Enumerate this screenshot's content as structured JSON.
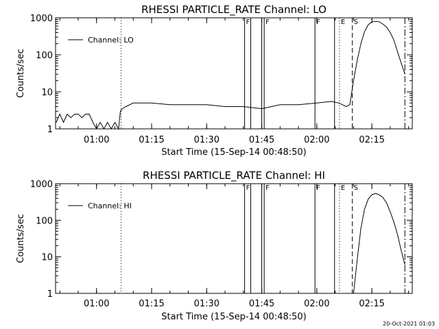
{
  "footer_timestamp": "20-Oct-2021 01:03",
  "time_axis": {
    "start": "00:48:50",
    "end": "02:26:00",
    "tick_labels": [
      "01:00",
      "01:15",
      "01:30",
      "01:45",
      "02:00",
      "02:15"
    ],
    "tick_times": [
      "01:00",
      "01:15",
      "01:30",
      "01:45",
      "02:00",
      "02:15"
    ]
  },
  "markers": [
    {
      "time": "01:06:40",
      "style": "dotted",
      "label": ""
    },
    {
      "time": "01:40:20",
      "style": "solid",
      "label": "F"
    },
    {
      "time": "01:42:00",
      "style": "solid",
      "label": ""
    },
    {
      "time": "01:45:00",
      "style": "solid",
      "label": ""
    },
    {
      "time": "01:45:40",
      "style": "solid",
      "label": "F"
    },
    {
      "time": "01:59:30",
      "style": "solid",
      "label": "F"
    },
    {
      "time": "02:04:50",
      "style": "solid",
      "label": ""
    },
    {
      "time": "02:06:10",
      "style": "dotted",
      "label": "E"
    },
    {
      "time": "02:09:40",
      "style": "dashed",
      "label": "S"
    },
    {
      "time": "02:24:00",
      "style": "dashdot",
      "label": ""
    }
  ],
  "chart_data": [
    {
      "type": "line",
      "title": "RHESSI PARTICLE_RATE Channel: LO",
      "xlabel": "Start Time (15-Sep-14 00:48:50)",
      "ylabel": "Counts/sec",
      "y_scale": "log",
      "ylim": [
        1,
        1000
      ],
      "y_tick_labels": [
        "1",
        "10",
        "100",
        "1000"
      ],
      "legend": "top-left",
      "series": [
        {
          "name": "Channel: LO",
          "x": [
            "00:49:00",
            "00:50:00",
            "00:51:00",
            "00:52:00",
            "00:53:00",
            "00:54:00",
            "00:55:00",
            "00:56:00",
            "00:57:00",
            "00:58:00",
            "00:59:00",
            "01:00:00",
            "01:01:00",
            "01:02:00",
            "01:03:00",
            "01:04:00",
            "01:05:00",
            "01:06:00",
            "01:06:30",
            "01:07:00",
            "01:08:00",
            "01:10:00",
            "01:12:00",
            "01:15:00",
            "01:20:00",
            "01:25:00",
            "01:30:00",
            "01:35:00",
            "01:40:00",
            "01:45:00",
            "01:50:00",
            "01:55:00",
            "02:00:00",
            "02:04:00",
            "02:06:00",
            "02:08:00",
            "02:09:00",
            "02:10:00",
            "02:11:00",
            "02:12:00",
            "02:13:00",
            "02:14:00",
            "02:15:00",
            "02:16:00",
            "02:17:00",
            "02:18:00",
            "02:19:00",
            "02:20:00",
            "02:21:00",
            "02:22:00",
            "02:23:00",
            "02:24:00"
          ],
          "y": [
            1.5,
            2.5,
            1.5,
            2.5,
            2.0,
            2.5,
            2.5,
            2.0,
            2.5,
            2.5,
            1.5,
            1.0,
            1.5,
            1.0,
            1.5,
            1.0,
            1.5,
            1.0,
            3.0,
            3.5,
            4.0,
            5.0,
            5.0,
            5.0,
            4.5,
            4.5,
            4.5,
            4.0,
            4.0,
            3.5,
            4.5,
            4.5,
            5.0,
            5.5,
            5.0,
            4.0,
            4.5,
            20,
            70,
            200,
            420,
            650,
            780,
            800,
            780,
            680,
            560,
            400,
            250,
            120,
            60,
            30
          ]
        }
      ]
    },
    {
      "type": "line",
      "title": "RHESSI PARTICLE_RATE Channel: HI",
      "xlabel": "Start Time (15-Sep-14 00:48:50)",
      "ylabel": "Counts/sec",
      "y_scale": "log",
      "ylim": [
        1,
        1000
      ],
      "y_tick_labels": [
        "1",
        "10",
        "100",
        "1000"
      ],
      "legend": "top-left",
      "series": [
        {
          "name": "Channel: HI",
          "x": [
            "02:10:00",
            "02:11:00",
            "02:12:00",
            "02:13:00",
            "02:14:00",
            "02:15:00",
            "02:16:00",
            "02:17:00",
            "02:18:00",
            "02:19:00",
            "02:20:00",
            "02:21:00",
            "02:22:00",
            "02:23:00",
            "02:24:00"
          ],
          "y": [
            1,
            8,
            60,
            200,
            380,
            500,
            540,
            500,
            420,
            300,
            170,
            90,
            40,
            15,
            6
          ]
        }
      ]
    }
  ]
}
